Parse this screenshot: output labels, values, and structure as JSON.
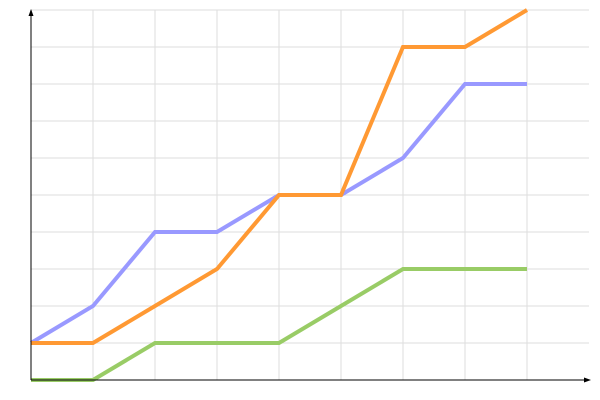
{
  "chart_data": {
    "type": "line",
    "title": "",
    "xlabel": "",
    "ylabel": "",
    "x": [
      0,
      1,
      2,
      3,
      4,
      5,
      6,
      7,
      8
    ],
    "xlim": [
      0,
      9
    ],
    "ylim": [
      0,
      10
    ],
    "grid": true,
    "legend": "none",
    "series": [
      {
        "color": "#9999ff",
        "values": [
          1,
          2,
          4,
          4,
          5,
          5,
          6,
          8,
          8
        ]
      },
      {
        "color": "#ff9933",
        "values": [
          1,
          1,
          2,
          3,
          5,
          5,
          9,
          9,
          10
        ]
      },
      {
        "color": "#99cc66",
        "values": [
          0,
          0,
          1,
          1,
          1,
          2,
          3,
          3,
          3
        ]
      }
    ]
  }
}
